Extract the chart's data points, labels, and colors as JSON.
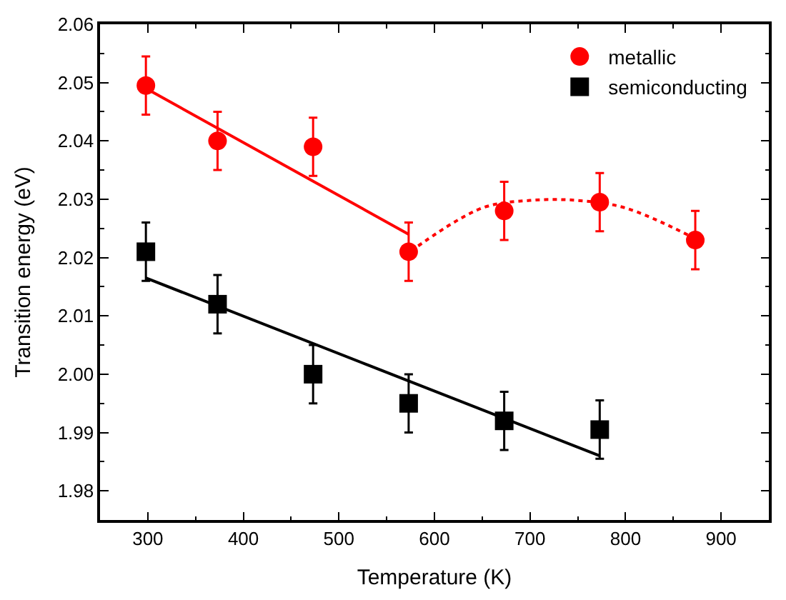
{
  "chart_data": {
    "type": "scatter",
    "xlabel": "Temperature (K)",
    "ylabel": "Transition energy (eV)",
    "xlim": [
      250,
      950
    ],
    "xticks": [
      300,
      400,
      500,
      600,
      700,
      800,
      900
    ],
    "ylim": [
      1.975,
      2.06
    ],
    "yticks": [
      1.98,
      1.99,
      {
        "value": 2.0,
        "label": "2.00"
      },
      2.01,
      2.02,
      2.03,
      2.04,
      2.05,
      2.06
    ],
    "legend": "top right",
    "series": [
      {
        "name": "metallic",
        "marker": "circle",
        "color": "#ff0000",
        "x": [
          298,
          373,
          473,
          573,
          673,
          773,
          873
        ],
        "values": [
          2.0495,
          2.04,
          2.039,
          2.021,
          2.028,
          2.0295,
          2.023
        ],
        "errors": [
          0.005,
          0.005,
          0.005,
          0.005,
          0.005,
          0.005,
          0.005
        ]
      },
      {
        "name": "semiconducting",
        "marker": "square",
        "color": "#000000",
        "x": [
          298,
          373,
          473,
          573,
          673,
          773
        ],
        "values": [
          2.021,
          2.012,
          2.0,
          1.995,
          1.992,
          1.9905
        ],
        "errors": [
          0.005,
          0.005,
          0.005,
          0.005,
          0.005,
          0.005
        ]
      },
      {
        "type": "line",
        "marker": "none",
        "line_style": "solid",
        "color": "#ff0000",
        "x": [
          298,
          573
        ],
        "values": [
          2.049,
          2.024
        ]
      },
      {
        "type": "line",
        "marker": "none",
        "line_style": "dotted",
        "color": "#ff0000",
        "x": [
          583,
          650,
          700,
          750,
          800,
          870
        ],
        "values": [
          2.022,
          2.0285,
          2.0298,
          2.0298,
          2.0285,
          2.0235
        ]
      },
      {
        "type": "line",
        "marker": "none",
        "line_style": "solid",
        "color": "#000000",
        "x": [
          298,
          773
        ],
        "values": [
          2.0165,
          1.986
        ]
      }
    ]
  }
}
